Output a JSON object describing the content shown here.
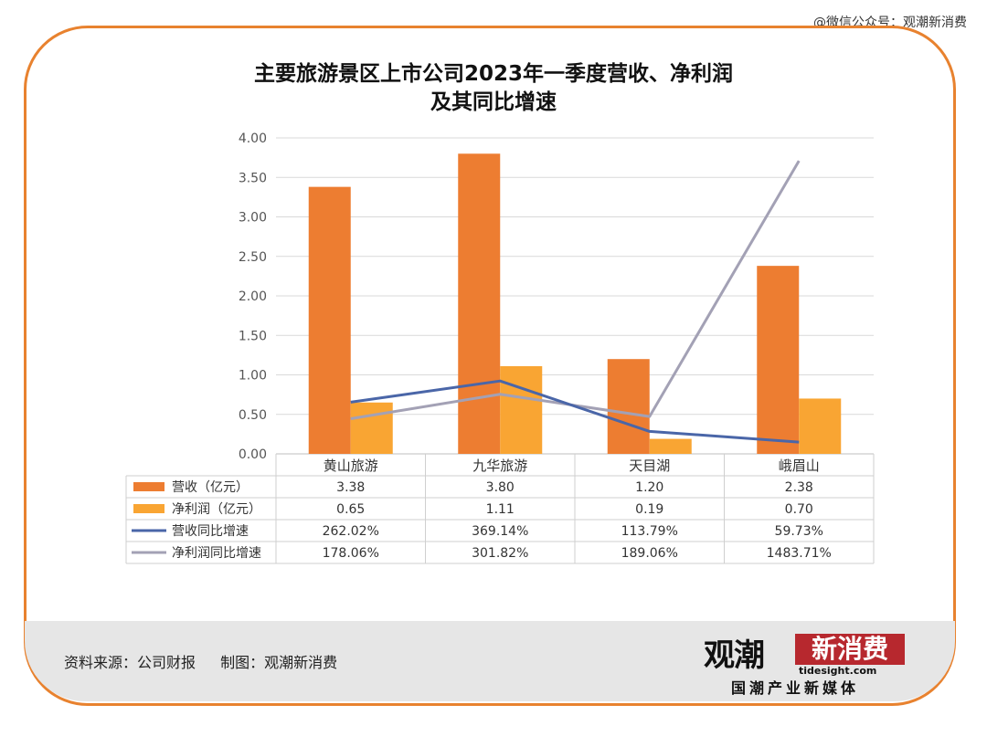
{
  "watermark_text": "@微信公众号：观潮新消费",
  "title_lines": [
    "主要旅游景区上市公司2023年一季度营收、净利润",
    "及其同比增速"
  ],
  "footer": {
    "source": "资料来源：公司财报",
    "maker": "制图：观潮新消费"
  },
  "brand": {
    "main": "观潮",
    "box": "新消费",
    "domain": "tidesight.com",
    "sub": "国潮产业新媒体"
  },
  "colors": {
    "frame": "#e8822f",
    "revenue": "#ed7d31",
    "profit": "#f9a533",
    "rev_growth": "#4a66a8",
    "profit_growth": "#a3a1b5"
  },
  "chart_data": {
    "type": "bar",
    "categories": [
      "黄山旅游",
      "九华旅游",
      "天目湖",
      "峨眉山"
    ],
    "ylim": [
      0,
      4.0
    ],
    "yticks": [
      "0.00",
      "0.50",
      "1.00",
      "1.50",
      "2.00",
      "2.50",
      "3.00",
      "3.50",
      "4.00"
    ],
    "grid": true,
    "legend_placement": "table-below",
    "series": [
      {
        "name": "营收（亿元）",
        "kind": "bar",
        "values": [
          3.38,
          3.8,
          1.2,
          2.38
        ],
        "labels": [
          "3.38",
          "3.80",
          "1.20",
          "2.38"
        ]
      },
      {
        "name": "净利润（亿元）",
        "kind": "bar",
        "values": [
          0.65,
          1.11,
          0.19,
          0.7
        ],
        "labels": [
          "0.65",
          "1.11",
          "0.19",
          "0.70"
        ]
      },
      {
        "name": "营收同比增速",
        "kind": "line",
        "values": [
          262.02,
          369.14,
          113.79,
          59.73
        ],
        "labels": [
          "262.02%",
          "369.14%",
          "113.79%",
          "59.73%"
        ]
      },
      {
        "name": "净利润同比增速",
        "kind": "line",
        "values": [
          178.06,
          301.82,
          189.06,
          1483.71
        ],
        "labels": [
          "178.06%",
          "301.82%",
          "189.06%",
          "1483.71%"
        ]
      }
    ]
  }
}
